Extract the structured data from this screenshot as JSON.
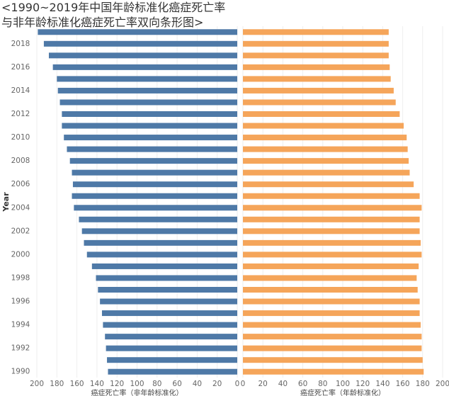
{
  "chart_data": {
    "type": "butterfly-bar",
    "title": "<1990~2019年中国年龄标准化癌症死亡率与非年龄标准化癌症死亡率双向条形图>",
    "ylabel": "Year",
    "categories": [
      "1990",
      null,
      "1992",
      null,
      "1994",
      null,
      "1996",
      null,
      "1998",
      null,
      "2000",
      null,
      "2002",
      null,
      "2004",
      null,
      "2006",
      null,
      "2008",
      null,
      "2010",
      null,
      "2012",
      null,
      "2014",
      null,
      "2016",
      null,
      "2018",
      null
    ],
    "grid": true,
    "series": [
      {
        "axis_label": "癌症死亡率（非年龄标准化）",
        "color": "#4e79a7",
        "reversed": true,
        "xlim": [
          0,
          200
        ],
        "xticks": [
          200,
          180,
          160,
          140,
          120,
          100,
          80,
          60,
          40,
          20,
          0
        ],
        "values": [
          129,
          130,
          131,
          132,
          134,
          135,
          137,
          139,
          141,
          145,
          150,
          153,
          155,
          158,
          163,
          165,
          164,
          165,
          167,
          170,
          173,
          175,
          175,
          177,
          179,
          180,
          184,
          188,
          193,
          199
        ]
      },
      {
        "axis_label": "癌症死亡率（年龄标准化）",
        "color": "#f5a55a",
        "reversed": false,
        "xlim": [
          0,
          200
        ],
        "xticks": [
          0,
          20,
          40,
          60,
          80,
          100,
          120,
          140,
          160,
          180,
          200
        ],
        "values": [
          181,
          180,
          179,
          179,
          178,
          177,
          177,
          175,
          174,
          176,
          179,
          178,
          177,
          177,
          179,
          177,
          171,
          167,
          166,
          165,
          164,
          161,
          157,
          153,
          151,
          148,
          147,
          146,
          146,
          146
        ]
      }
    ]
  }
}
